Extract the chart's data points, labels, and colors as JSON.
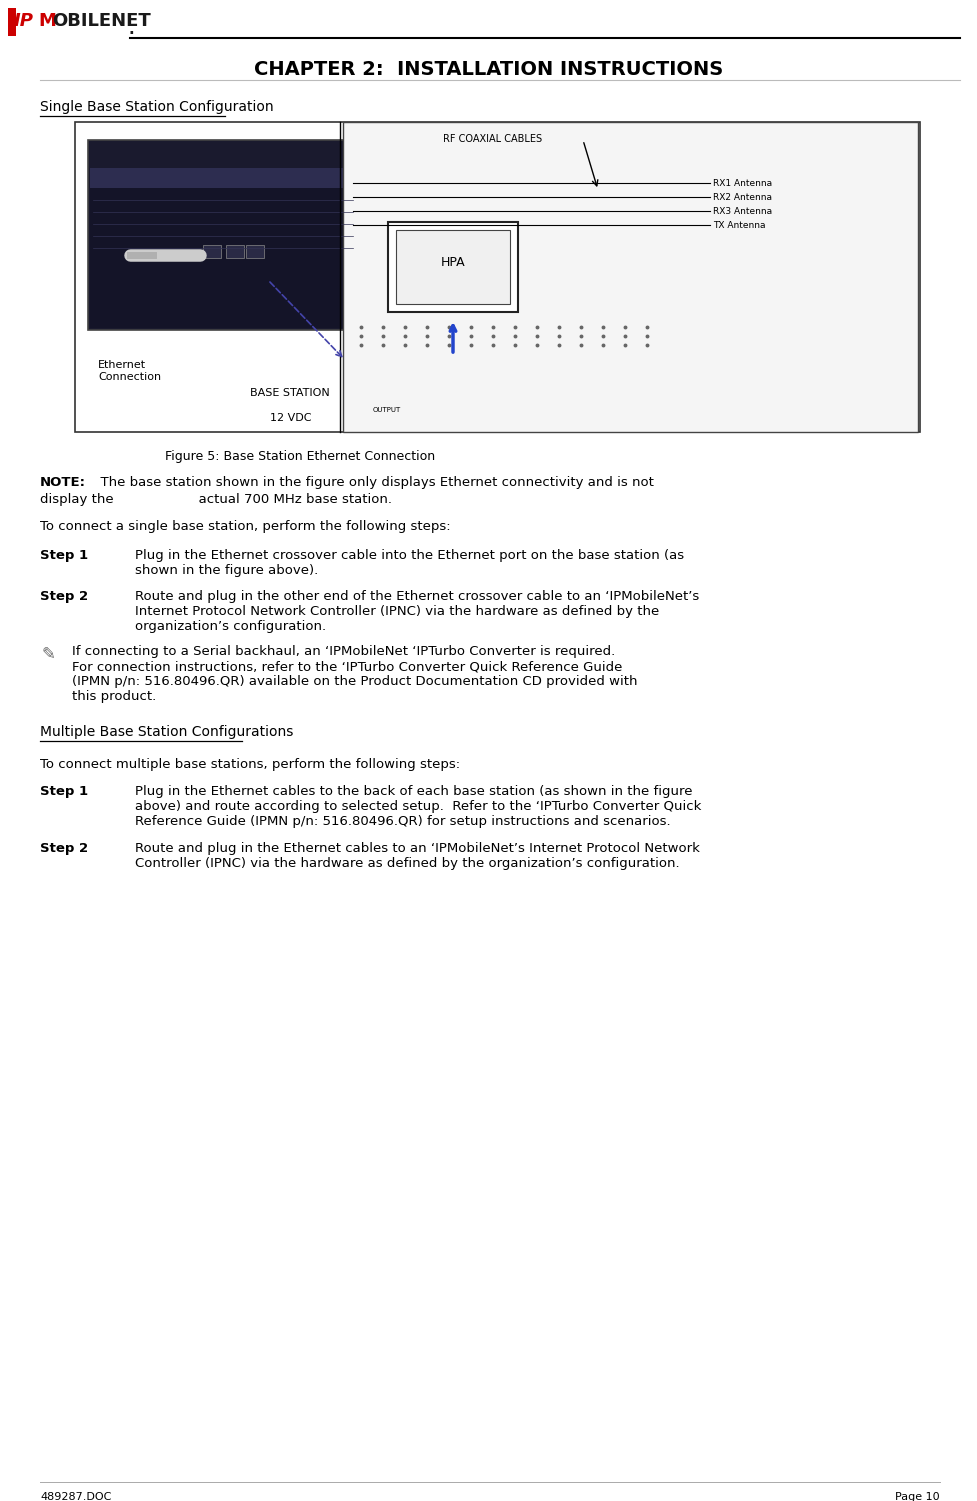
{
  "title": "CHAPTER 2:  INSTALLATION INSTRUCTIONS",
  "section1_heading": "Single Base Station Configuration",
  "figure_caption": "Figure 5: Base Station Ethernet Connection",
  "note_label": "NOTE:",
  "note_text1": "  The base station shown in the figure only displays Ethernet connectivity and is not",
  "note_text2": "display the                    actual 700 MHz base station.",
  "intro1": "To connect a single base station, perform the following steps:",
  "step1_label": "Step 1",
  "step1_text": "Plug in the Ethernet crossover cable into the Ethernet port on the base station (as\nshown in the figure above).",
  "step2_label": "Step 2",
  "step2_text": "Route and plug in the other end of the Ethernet crossover cable to an ‘IPMobileNet’s\nInternet Protocol Network Controller (IPNC) via the hardware as defined by the\norganization’s configuration.",
  "note2_text": "If connecting to a Serial backhaul, an ‘IPMobileNet ‘IPTurbo Converter is required.\nFor connection instructions, refer to the ‘IPTurbo Converter Quick Reference Guide\n(IPMN p/n: 516.80496.QR) available on the Product Documentation CD provided with\nthis product.",
  "section2_heading": "Multiple Base Station Configurations",
  "intro2": "To connect multiple base stations, perform the following steps:",
  "step3_label": "Step 1",
  "step3_text": "Plug in the Ethernet cables to the back of each base station (as shown in the figure\nabove) and route according to selected setup.  Refer to the ‘IPTurbo Converter Quick\nReference Guide (IPMN p/n: 516.80496.QR) for setup instructions and scenarios.",
  "step4_label": "Step 2",
  "step4_text": "Route and plug in the Ethernet cables to an ‘IPMobileNet’s Internet Protocol Network\nController (IPNC) via the hardware as defined by the organization’s configuration.",
  "footer_left": "489287.DOC",
  "footer_right": "Page 10",
  "bg_color": "#ffffff",
  "text_color": "#000000",
  "ant_labels": [
    "RX1 Antenna",
    "RX2 Antenna",
    "RX3 Antenna",
    "TX Antenna"
  ],
  "diagram_bg": "#ffffff",
  "photo_dark": "#1a1a2e",
  "photo_mid": "#2d2d50"
}
